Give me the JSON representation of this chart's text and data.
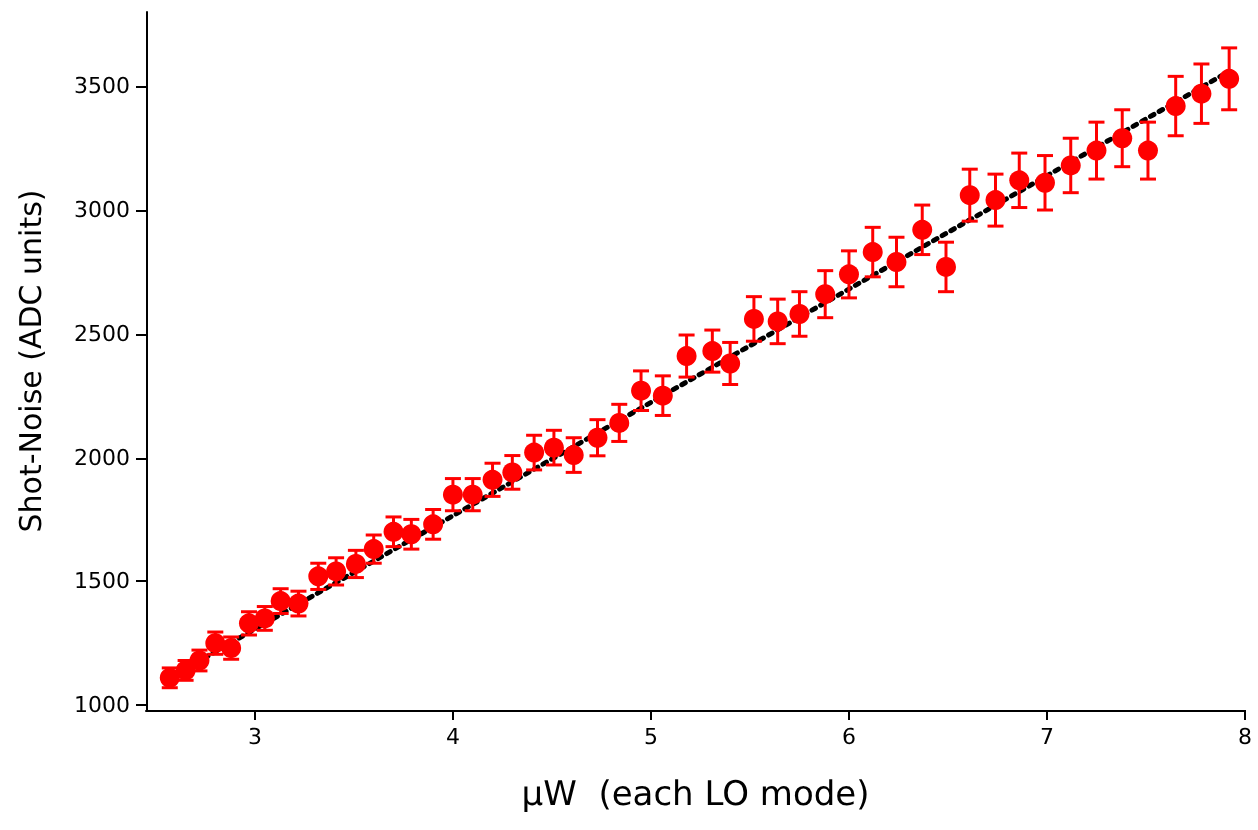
{
  "chart_data": {
    "type": "scatter",
    "xlabel": "μW  (each LO mode)",
    "ylabel": "Shot-Noise (ADC units)",
    "xlim": [
      2.45,
      8
    ],
    "xticks": [
      3,
      4,
      5,
      6,
      7,
      8
    ],
    "ylim": [
      980,
      3800
    ],
    "yticks": [
      1000,
      1500,
      2000,
      2500,
      3000,
      3500
    ],
    "grid": false,
    "marker": "circle",
    "series": [
      {
        "color": "#ff0000",
        "x": [
          2.57,
          2.65,
          2.72,
          2.8,
          2.88,
          2.97,
          3.05,
          3.13,
          3.22,
          3.32,
          3.41,
          3.51,
          3.6,
          3.7,
          3.79,
          3.9,
          4.0,
          4.1,
          4.2,
          4.3,
          4.41,
          4.51,
          4.61,
          4.73,
          4.84,
          4.95,
          5.06,
          5.18,
          5.31,
          5.4,
          5.52,
          5.64,
          5.75,
          5.88,
          6.0,
          6.12,
          6.24,
          6.37,
          6.49,
          6.61,
          6.74,
          6.86,
          6.99,
          7.12,
          7.25,
          7.38,
          7.51,
          7.65,
          7.78,
          7.92
        ],
        "values": [
          1110,
          1140,
          1180,
          1250,
          1230,
          1330,
          1350,
          1420,
          1410,
          1520,
          1540,
          1570,
          1630,
          1700,
          1690,
          1730,
          1850,
          1850,
          1910,
          1940,
          2020,
          2040,
          2010,
          2080,
          2140,
          2270,
          2250,
          2410,
          2430,
          2380,
          2560,
          2550,
          2580,
          2660,
          2740,
          2830,
          2790,
          2920,
          2770,
          3060,
          3040,
          3120,
          3110,
          3180,
          3240,
          3290,
          3240,
          3420,
          3470,
          3530
        ],
        "errors": [
          40,
          40,
          42,
          45,
          45,
          47,
          48,
          50,
          50,
          53,
          55,
          55,
          57,
          60,
          60,
          60,
          65,
          65,
          67,
          68,
          70,
          70,
          70,
          73,
          75,
          80,
          80,
          85,
          85,
          85,
          90,
          90,
          90,
          95,
          95,
          100,
          100,
          100,
          100,
          105,
          105,
          110,
          110,
          110,
          115,
          115,
          115,
          120,
          120,
          125
        ]
      },
      {
        "type": "line",
        "color": "#000000",
        "line_style": "dotted",
        "marker": "none",
        "x": [
          2.57,
          7.92
        ],
        "values": [
          1110,
          3560
        ]
      }
    ]
  }
}
